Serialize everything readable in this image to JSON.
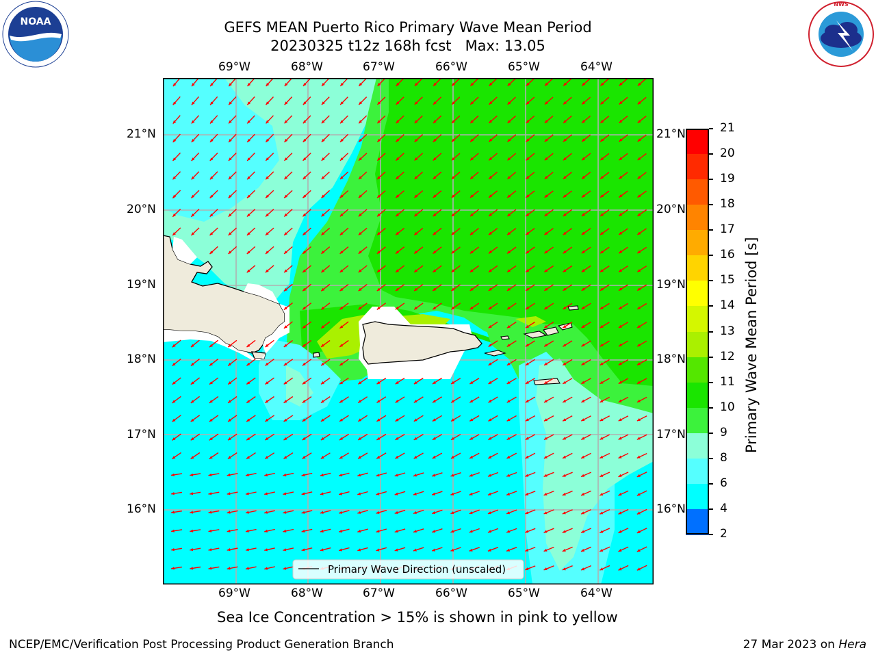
{
  "title": {
    "line1": "GEFS MEAN Puerto Rico Primary Wave Mean Period",
    "line2": "20230325 t12z 168h fcst   Max: 13.05"
  },
  "logos": {
    "left": "NOAA",
    "left_ring": "NATIONAL OCEANIC AND ATMOSPHERIC ADMINISTRATION · U.S. DEPARTMENT OF COMMERCE",
    "right_ring": "NATIONAL WEATHER SERVICE"
  },
  "map": {
    "lon_labels": [
      "69°W",
      "68°W",
      "67°W",
      "66°W",
      "65°W",
      "64°W"
    ],
    "lat_labels": [
      "21°N",
      "20°N",
      "19°N",
      "18°N",
      "17°N",
      "16°N"
    ],
    "legend_label": "Primary Wave Direction (unscaled)",
    "arrow_color": "#ff0000",
    "land_color": "#efebdc"
  },
  "colorbar": {
    "label": "Primary Wave Mean Period [s]",
    "ticks": [
      "21",
      "20",
      "19",
      "18",
      "17",
      "16",
      "15",
      "14",
      "13",
      "12",
      "11",
      "10",
      "9",
      "8",
      "6",
      "4",
      "2"
    ],
    "colors": [
      "#ff0000",
      "#ff2a00",
      "#ff5a00",
      "#ff8400",
      "#ffab00",
      "#ffd400",
      "#ffff00",
      "#d4f700",
      "#aaf000",
      "#54e700",
      "#1ae500",
      "#3cf23c",
      "#8cffd8",
      "#55ffff",
      "#00ffff",
      "#0070ff",
      "#0000ff"
    ]
  },
  "subtitle": "Sea Ice Concentration > 15% is shown in pink to yellow",
  "footer": {
    "left": "NCEP/EMC/Verification Post Processing Product Generation Branch",
    "right_prefix": "27 Mar 2023 on ",
    "right_host": "Hera"
  }
}
